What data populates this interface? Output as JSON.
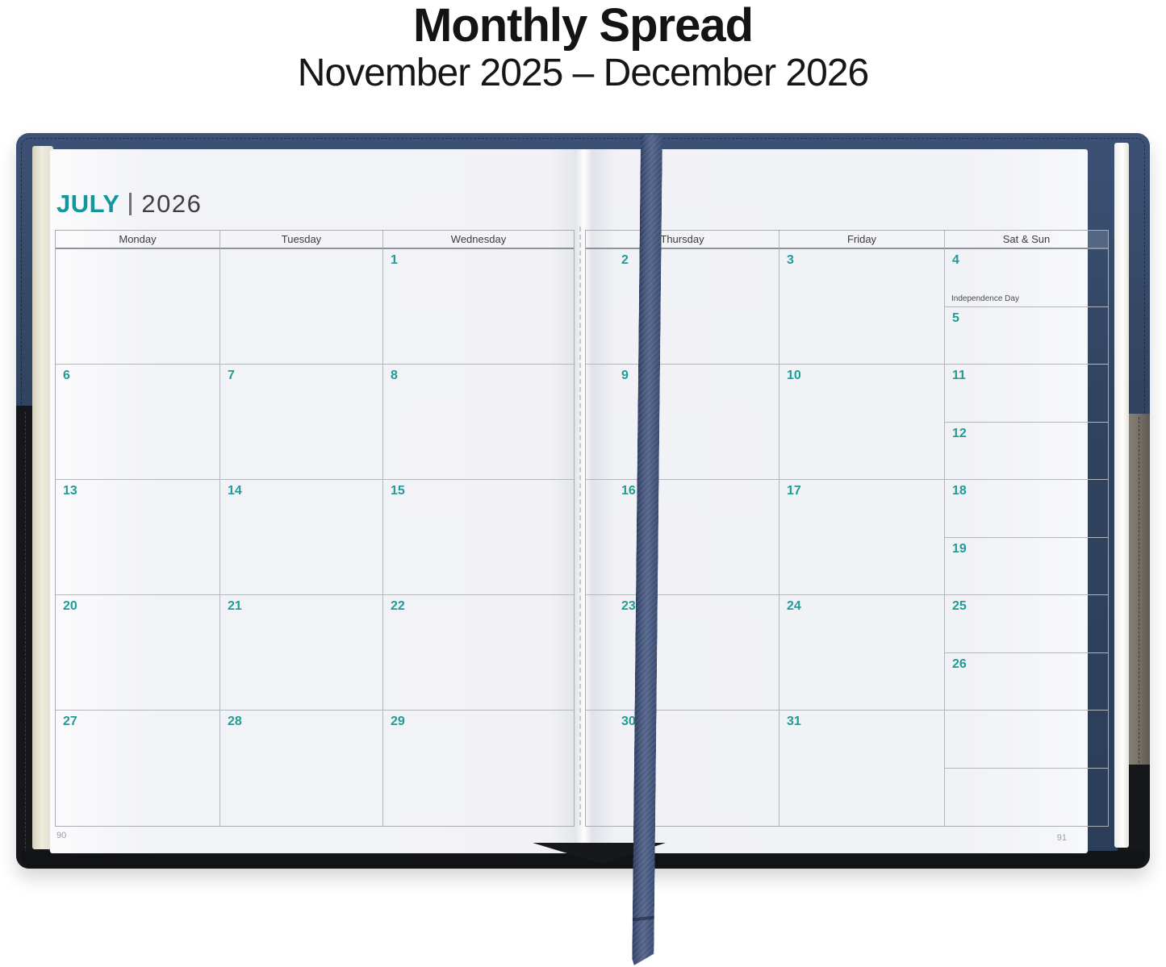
{
  "title": "Monthly Spread",
  "subtitle": "November 2025 – December 2026",
  "planner": {
    "month": "JULY",
    "year": "2026",
    "left_page": {
      "day_headers": [
        "Monday",
        "Tuesday",
        "Wednesday"
      ],
      "rows": [
        [
          "",
          "",
          "1"
        ],
        [
          "6",
          "7",
          "8"
        ],
        [
          "13",
          "14",
          "15"
        ],
        [
          "20",
          "21",
          "22"
        ],
        [
          "27",
          "28",
          "29"
        ]
      ],
      "page_number": "90"
    },
    "right_page": {
      "day_headers": [
        "Thursday",
        "Friday",
        "Sat & Sun"
      ],
      "rows": [
        {
          "thu": "2",
          "fri": "3",
          "sat": "4",
          "sun": "5"
        },
        {
          "thu": "9",
          "fri": "10",
          "sat": "11",
          "sun": "12"
        },
        {
          "thu": "16",
          "fri": "17",
          "sat": "18",
          "sun": "19"
        },
        {
          "thu": "23",
          "fri": "24",
          "sat": "25",
          "sun": "26"
        },
        {
          "thu": "30",
          "fri": "31",
          "sat": "",
          "sun": ""
        }
      ],
      "holiday_note": "Independence Day",
      "page_number": "91"
    }
  },
  "colors": {
    "accent_teal": "#1e9b96",
    "cover_navy": "#33476a",
    "ribbon_navy": "#3c5076",
    "cover_black": "#17181b",
    "cover_taupe": "#837d74",
    "page_background": "#f1f2f6"
  }
}
